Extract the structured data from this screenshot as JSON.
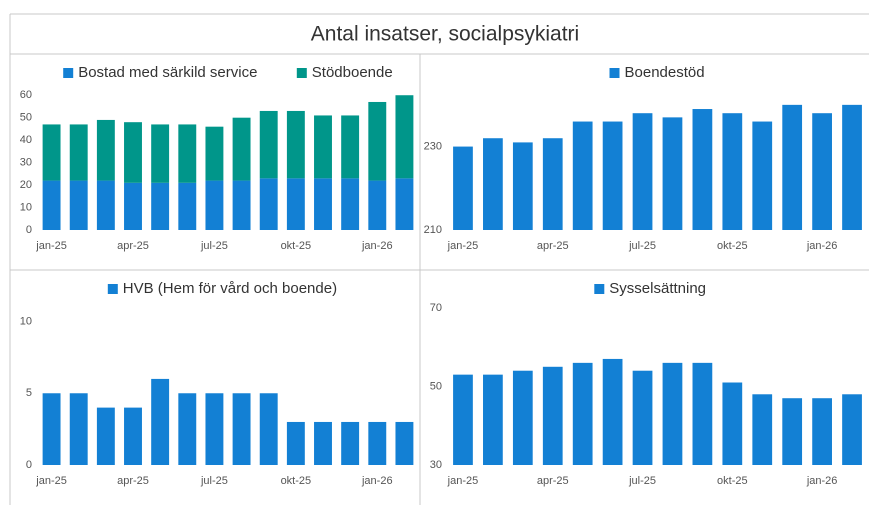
{
  "title": "Antal insatser, socialpsykiatri",
  "chart_data": [
    {
      "type": "stacked-bar",
      "categories": [
        "jan-25",
        null,
        null,
        "apr-25",
        null,
        null,
        "jul-25",
        null,
        null,
        "okt-25",
        null,
        null,
        "jan-26",
        null
      ],
      "series": [
        {
          "name": "Bostad med särkild service",
          "color": "#1380d4",
          "values": [
            22,
            22,
            22,
            21,
            21,
            21,
            22,
            22,
            23,
            23,
            23,
            23,
            22,
            23
          ]
        },
        {
          "name": "Stödboende",
          "color": "#00968a",
          "values": [
            25,
            25,
            27,
            27,
            26,
            26,
            24,
            28,
            30,
            30,
            28,
            28,
            35,
            37
          ]
        }
      ],
      "ylim": [
        0,
        65
      ],
      "yticks": [
        0,
        10,
        20,
        30,
        40,
        50,
        60
      ]
    },
    {
      "type": "bar",
      "categories": [
        "jan-25",
        null,
        null,
        "apr-25",
        null,
        null,
        "jul-25",
        null,
        null,
        "okt-25",
        null,
        null,
        "jan-26",
        null
      ],
      "series": [
        {
          "name": "Boendestöd",
          "color": "#1380d4",
          "values": [
            230,
            232,
            231,
            232,
            236,
            236,
            238,
            237,
            239,
            238,
            236,
            240,
            238,
            240
          ]
        }
      ],
      "ylim": [
        210,
        245
      ],
      "yticks": [
        210,
        230
      ]
    },
    {
      "type": "bar",
      "categories": [
        "jan-25",
        null,
        null,
        "apr-25",
        null,
        null,
        "jul-25",
        null,
        null,
        "okt-25",
        null,
        null,
        "jan-26",
        null
      ],
      "series": [
        {
          "name": "HVB (Hem för vård och boende)",
          "color": "#1380d4",
          "values": [
            5,
            5,
            4,
            4,
            6,
            5,
            5,
            5,
            5,
            3,
            3,
            3,
            3,
            3
          ]
        }
      ],
      "ylim": [
        0,
        11.5
      ],
      "yticks": [
        0,
        5,
        10
      ]
    },
    {
      "type": "bar",
      "categories": [
        "jan-25",
        null,
        null,
        "apr-25",
        null,
        null,
        "jul-25",
        null,
        null,
        "okt-25",
        null,
        null,
        "jan-26",
        null
      ],
      "series": [
        {
          "name": "Sysselsättning",
          "color": "#1380d4",
          "values": [
            53,
            53,
            54,
            55,
            56,
            57,
            54,
            56,
            56,
            51,
            48,
            47,
            47,
            48
          ]
        }
      ],
      "ylim": [
        30,
        72
      ],
      "yticks": [
        30,
        50,
        70
      ]
    }
  ]
}
